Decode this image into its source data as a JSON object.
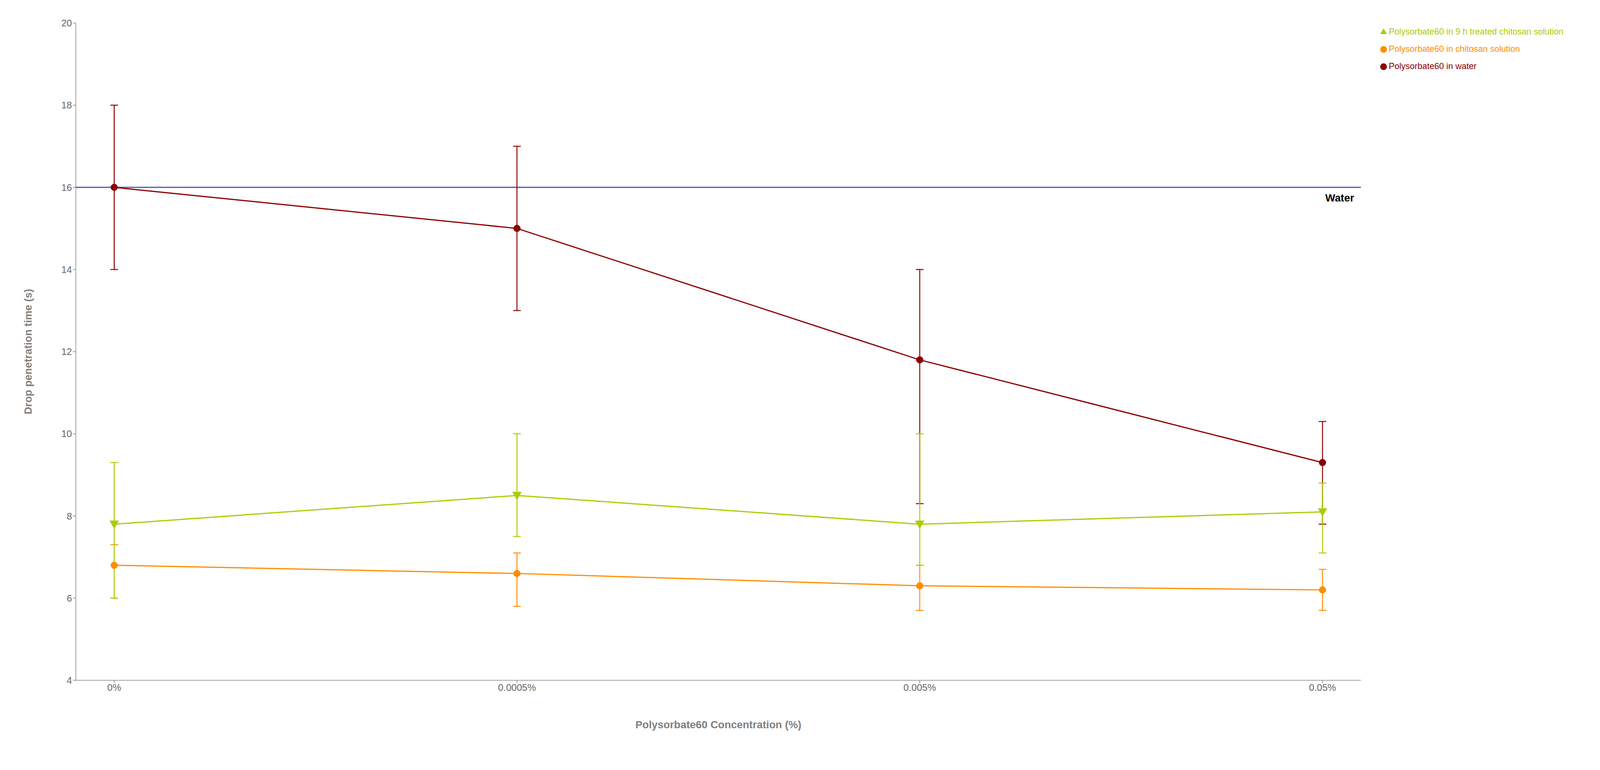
{
  "chart_data": {
    "type": "line",
    "xlabel": "Polysorbate60 Concentration (%)",
    "ylabel": "Drop penetration time (s)",
    "categories": [
      "0%",
      "0.0005%",
      "0.005%",
      "0.05%"
    ],
    "series": [
      {
        "name": "Polysorbate60 in water",
        "color": "#8B0000",
        "marker": "circle",
        "values": [
          16.0,
          15.0,
          11.8,
          9.3
        ],
        "error_upper": [
          2.0,
          2.0,
          2.2,
          1.0
        ],
        "error_lower": [
          2.0,
          2.0,
          3.5,
          1.5
        ]
      },
      {
        "name": "Polysorbate60 in chitosan solution",
        "color": "#FF8C00",
        "marker": "circle",
        "values": [
          6.8,
          6.6,
          6.3,
          6.2
        ],
        "error_upper": [
          0.5,
          0.5,
          0.5,
          0.5
        ],
        "error_lower": [
          0.8,
          0.8,
          0.6,
          0.5
        ]
      },
      {
        "name": "Polysorbate60 in 9 h treated chitosan solution",
        "color": "#AACC00",
        "marker": "triangle-down",
        "values": [
          7.8,
          8.5,
          7.8,
          8.1
        ],
        "error_upper": [
          1.5,
          1.5,
          2.2,
          0.7
        ],
        "error_lower": [
          1.8,
          1.0,
          1.0,
          1.0
        ]
      }
    ],
    "reference_line": {
      "value": 16.0,
      "color": "#5555BB",
      "label": "Water"
    },
    "ylim": [
      4,
      20
    ],
    "yticks": [
      4,
      6,
      8,
      10,
      12,
      14,
      16,
      18,
      20
    ],
    "grid": false,
    "legend": "right"
  }
}
